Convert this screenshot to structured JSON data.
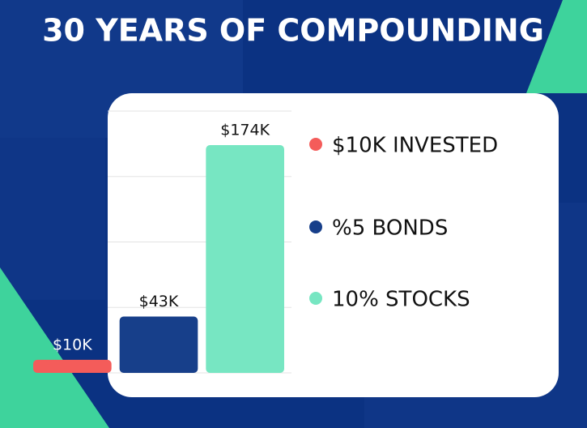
{
  "chart_data": {
    "type": "bar",
    "title": "30 YEARS OF COMPOUNDING",
    "categories": [
      "$10K INVESTED",
      "%5 BONDS",
      "10% STOCKS"
    ],
    "values": [
      10,
      43,
      174
    ],
    "value_labels": [
      "$10K",
      "$43K",
      "$174K"
    ],
    "colors": [
      "#f45c5a",
      "#173f8a",
      "#77e6c2"
    ],
    "ylim": [
      0,
      200
    ],
    "yticks": [
      0,
      50,
      100,
      150,
      200
    ],
    "grid": true
  }
}
